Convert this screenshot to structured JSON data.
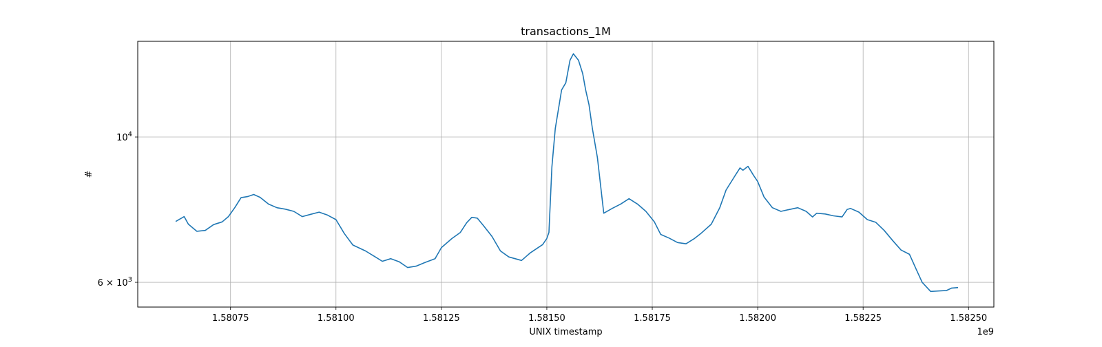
{
  "chart_data": {
    "type": "line",
    "title": "transactions_1M",
    "xlabel": "UNIX timestamp",
    "ylabel": "#",
    "x_offset_label": "1e9",
    "x_scale_factor": 1000000000,
    "y_scale": "log",
    "xlim": [
      1580530000,
      1582560000
    ],
    "ylim": [
      5500,
      14000
    ],
    "x_ticks": [
      1580750000,
      1581000000,
      1581250000,
      1581500000,
      1581750000,
      1582000000,
      1582250000,
      1582500000
    ],
    "x_tick_labels": [
      "1.58075",
      "1.58100",
      "1.58125",
      "1.58150",
      "1.58175",
      "1.58200",
      "1.58225",
      "1.58250"
    ],
    "y_ticks": [
      6000,
      10000
    ],
    "y_tick_labels": [
      {
        "mantissa": "6",
        "times": "×",
        "base": "10",
        "exp": "3"
      },
      {
        "mantissa": "",
        "times": "",
        "base": "10",
        "exp": "4"
      }
    ],
    "grid": true,
    "line_color": "#1f77b4",
    "series": [
      {
        "values": [
          [
            1580620000,
            7430
          ],
          [
            1580640000,
            7560
          ],
          [
            1580650000,
            7360
          ],
          [
            1580670000,
            7180
          ],
          [
            1580690000,
            7200
          ],
          [
            1580710000,
            7350
          ],
          [
            1580730000,
            7420
          ],
          [
            1580745000,
            7560
          ],
          [
            1580760000,
            7800
          ],
          [
            1580775000,
            8080
          ],
          [
            1580790000,
            8110
          ],
          [
            1580805000,
            8170
          ],
          [
            1580820000,
            8090
          ],
          [
            1580840000,
            7900
          ],
          [
            1580860000,
            7800
          ],
          [
            1580880000,
            7760
          ],
          [
            1580900000,
            7700
          ],
          [
            1580920000,
            7560
          ],
          [
            1580940000,
            7620
          ],
          [
            1580960000,
            7680
          ],
          [
            1580980000,
            7600
          ],
          [
            1581000000,
            7480
          ],
          [
            1581020000,
            7120
          ],
          [
            1581040000,
            6840
          ],
          [
            1581070000,
            6700
          ],
          [
            1581090000,
            6580
          ],
          [
            1581110000,
            6460
          ],
          [
            1581130000,
            6520
          ],
          [
            1581150000,
            6450
          ],
          [
            1581170000,
            6320
          ],
          [
            1581190000,
            6350
          ],
          [
            1581210000,
            6430
          ],
          [
            1581235000,
            6520
          ],
          [
            1581250000,
            6780
          ],
          [
            1581275000,
            7000
          ],
          [
            1581295000,
            7150
          ],
          [
            1581310000,
            7400
          ],
          [
            1581322000,
            7540
          ],
          [
            1581335000,
            7520
          ],
          [
            1581350000,
            7320
          ],
          [
            1581370000,
            7050
          ],
          [
            1581390000,
            6700
          ],
          [
            1581410000,
            6560
          ],
          [
            1581440000,
            6480
          ],
          [
            1581460000,
            6650
          ],
          [
            1581490000,
            6850
          ],
          [
            1581500000,
            7000
          ],
          [
            1581505000,
            7150
          ],
          [
            1581512000,
            9000
          ],
          [
            1581520000,
            10300
          ],
          [
            1581535000,
            11800
          ],
          [
            1581545000,
            12100
          ],
          [
            1581555000,
            13100
          ],
          [
            1581563000,
            13400
          ],
          [
            1581575000,
            13100
          ],
          [
            1581585000,
            12500
          ],
          [
            1581592000,
            11800
          ],
          [
            1581600000,
            11200
          ],
          [
            1581608000,
            10300
          ],
          [
            1581620000,
            9300
          ],
          [
            1581635000,
            7650
          ],
          [
            1581655000,
            7780
          ],
          [
            1581675000,
            7900
          ],
          [
            1581695000,
            8050
          ],
          [
            1581715000,
            7900
          ],
          [
            1581735000,
            7700
          ],
          [
            1581755000,
            7420
          ],
          [
            1581770000,
            7100
          ],
          [
            1581790000,
            7010
          ],
          [
            1581810000,
            6900
          ],
          [
            1581830000,
            6870
          ],
          [
            1581850000,
            7000
          ],
          [
            1581865000,
            7120
          ],
          [
            1581890000,
            7360
          ],
          [
            1581910000,
            7800
          ],
          [
            1581925000,
            8300
          ],
          [
            1581945000,
            8700
          ],
          [
            1581958000,
            8970
          ],
          [
            1581965000,
            8900
          ],
          [
            1581977000,
            9020
          ],
          [
            1581990000,
            8740
          ],
          [
            1582000000,
            8550
          ],
          [
            1582015000,
            8100
          ],
          [
            1582035000,
            7800
          ],
          [
            1582055000,
            7700
          ],
          [
            1582075000,
            7750
          ],
          [
            1582095000,
            7800
          ],
          [
            1582115000,
            7700
          ],
          [
            1582130000,
            7550
          ],
          [
            1582140000,
            7650
          ],
          [
            1582160000,
            7630
          ],
          [
            1582180000,
            7580
          ],
          [
            1582200000,
            7550
          ],
          [
            1582212000,
            7750
          ],
          [
            1582220000,
            7780
          ],
          [
            1582240000,
            7680
          ],
          [
            1582260000,
            7480
          ],
          [
            1582280000,
            7410
          ],
          [
            1582300000,
            7200
          ],
          [
            1582320000,
            6950
          ],
          [
            1582340000,
            6720
          ],
          [
            1582360000,
            6620
          ],
          [
            1582375000,
            6300
          ],
          [
            1582390000,
            6000
          ],
          [
            1582410000,
            5810
          ],
          [
            1582430000,
            5820
          ],
          [
            1582448000,
            5830
          ],
          [
            1582460000,
            5880
          ],
          [
            1582475000,
            5890
          ]
        ]
      }
    ]
  }
}
